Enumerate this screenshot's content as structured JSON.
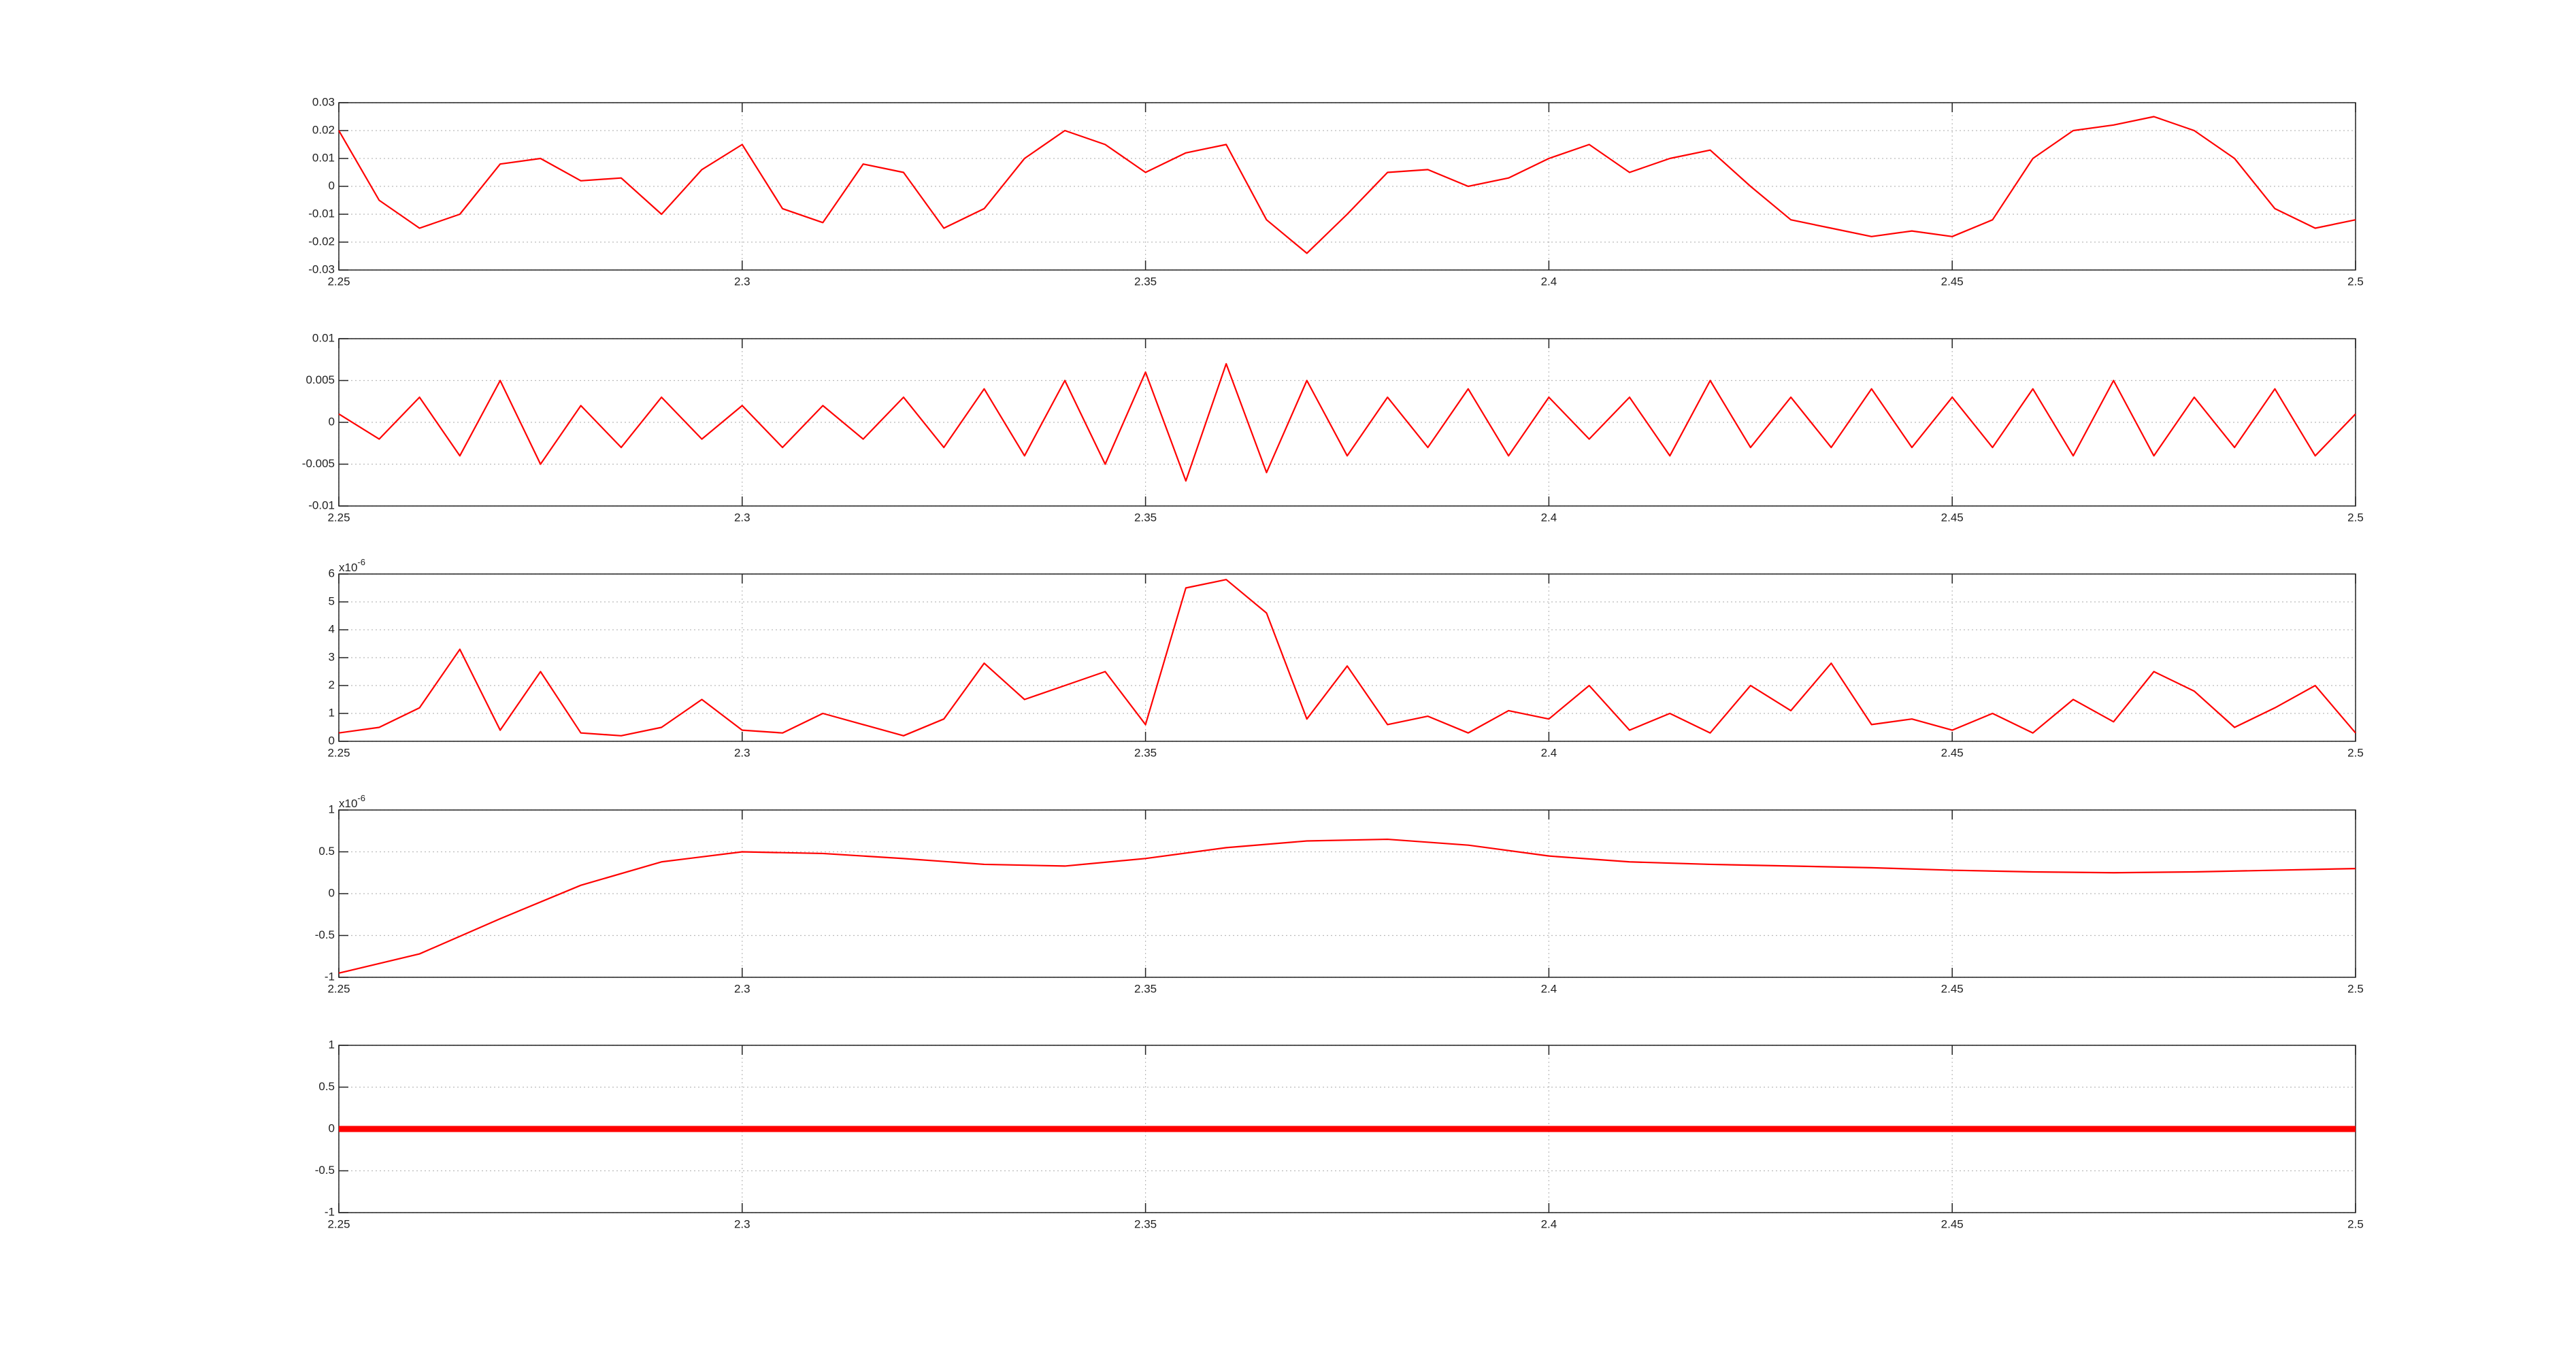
{
  "chart_data": [
    {
      "type": "line",
      "x": [
        2.25,
        2.255,
        2.26,
        2.265,
        2.27,
        2.275,
        2.28,
        2.285,
        2.29,
        2.295,
        2.3,
        2.305,
        2.31,
        2.315,
        2.32,
        2.325,
        2.33,
        2.335,
        2.34,
        2.345,
        2.35,
        2.355,
        2.36,
        2.365,
        2.37,
        2.375,
        2.38,
        2.385,
        2.39,
        2.395,
        2.4,
        2.405,
        2.41,
        2.415,
        2.42,
        2.425,
        2.43,
        2.435,
        2.44,
        2.445,
        2.45,
        2.455,
        2.46,
        2.465,
        2.47,
        2.475,
        2.48,
        2.485,
        2.49,
        2.495,
        2.5
      ],
      "series": [
        {
          "color": "#ff0000",
          "values": [
            0.02,
            -0.005,
            -0.015,
            -0.01,
            0.008,
            0.01,
            0.002,
            0.003,
            -0.01,
            0.006,
            0.015,
            -0.008,
            -0.013,
            0.008,
            0.005,
            -0.015,
            -0.008,
            0.01,
            0.02,
            0.015,
            0.005,
            0.012,
            0.015,
            -0.012,
            -0.024,
            -0.01,
            0.005,
            0.006,
            0,
            0.003,
            0.01,
            0.015,
            0.005,
            0.01,
            0.013,
            0,
            -0.012,
            -0.015,
            -0.018,
            -0.016,
            -0.018,
            -0.012,
            0.01,
            0.02,
            0.022,
            0.025,
            0.02,
            0.01,
            -0.008,
            -0.015,
            -0.012
          ]
        }
      ],
      "xlim": [
        2.25,
        2.5
      ],
      "xticks": [
        2.25,
        2.3,
        2.35,
        2.4,
        2.45,
        2.5
      ],
      "ylim": [
        -0.03,
        0.03
      ],
      "yticks": [
        -0.03,
        -0.02,
        -0.01,
        0,
        0.01,
        0.02,
        0.03
      ],
      "grid": true
    },
    {
      "type": "line",
      "x": [
        2.25,
        2.255,
        2.26,
        2.265,
        2.27,
        2.275,
        2.28,
        2.285,
        2.29,
        2.295,
        2.3,
        2.305,
        2.31,
        2.315,
        2.32,
        2.325,
        2.33,
        2.335,
        2.34,
        2.345,
        2.35,
        2.355,
        2.36,
        2.365,
        2.37,
        2.375,
        2.38,
        2.385,
        2.39,
        2.395,
        2.4,
        2.405,
        2.41,
        2.415,
        2.42,
        2.425,
        2.43,
        2.435,
        2.44,
        2.445,
        2.45,
        2.455,
        2.46,
        2.465,
        2.47,
        2.475,
        2.48,
        2.485,
        2.49,
        2.495,
        2.5
      ],
      "series": [
        {
          "color": "#ff0000",
          "values": [
            0.001,
            -0.002,
            0.003,
            -0.004,
            0.005,
            -0.005,
            0.002,
            -0.003,
            0.003,
            -0.002,
            0.002,
            -0.003,
            0.002,
            -0.002,
            0.003,
            -0.003,
            0.004,
            -0.004,
            0.005,
            -0.005,
            0.006,
            -0.007,
            0.007,
            -0.006,
            0.005,
            -0.004,
            0.003,
            -0.003,
            0.004,
            -0.004,
            0.003,
            -0.002,
            0.003,
            -0.004,
            0.005,
            -0.003,
            0.003,
            -0.003,
            0.004,
            -0.003,
            0.003,
            -0.003,
            0.004,
            -0.004,
            0.005,
            -0.004,
            0.003,
            -0.003,
            0.004,
            -0.004,
            0.001
          ]
        }
      ],
      "xlim": [
        2.25,
        2.5
      ],
      "xticks": [
        2.25,
        2.3,
        2.35,
        2.4,
        2.45,
        2.5
      ],
      "ylim": [
        -0.01,
        0.01
      ],
      "yticks": [
        -0.01,
        -0.005,
        0,
        0.005,
        0.01
      ],
      "grid": true
    },
    {
      "type": "line",
      "x": [
        2.25,
        2.255,
        2.26,
        2.265,
        2.27,
        2.275,
        2.28,
        2.285,
        2.29,
        2.295,
        2.3,
        2.305,
        2.31,
        2.315,
        2.32,
        2.325,
        2.33,
        2.335,
        2.34,
        2.345,
        2.35,
        2.355,
        2.36,
        2.365,
        2.37,
        2.375,
        2.38,
        2.385,
        2.39,
        2.395,
        2.4,
        2.405,
        2.41,
        2.415,
        2.42,
        2.425,
        2.43,
        2.435,
        2.44,
        2.445,
        2.45,
        2.455,
        2.46,
        2.465,
        2.47,
        2.475,
        2.48,
        2.485,
        2.49,
        2.495,
        2.5
      ],
      "series": [
        {
          "color": "#ff0000",
          "values": [
            0.3,
            0.5,
            1.2,
            3.3,
            0.4,
            2.5,
            0.3,
            0.2,
            0.5,
            1.5,
            0.4,
            0.3,
            1.0,
            0.6,
            0.2,
            0.8,
            2.8,
            1.5,
            2.0,
            2.5,
            0.6,
            5.5,
            5.8,
            4.6,
            0.8,
            2.7,
            0.6,
            0.9,
            0.3,
            1.1,
            0.8,
            2.0,
            0.4,
            1.0,
            0.3,
            2.0,
            1.1,
            2.8,
            0.6,
            0.8,
            0.4,
            1.0,
            0.3,
            1.5,
            0.7,
            2.5,
            1.8,
            0.5,
            1.2,
            2.0,
            0.3
          ]
        }
      ],
      "xlim": [
        2.25,
        2.5
      ],
      "xticks": [
        2.25,
        2.3,
        2.35,
        2.4,
        2.45,
        2.5
      ],
      "ylim": [
        0,
        6
      ],
      "yticks": [
        0,
        1,
        2,
        3,
        4,
        5,
        6
      ],
      "grid": true,
      "y_scale_label": "x10",
      "y_scale_exponent": "-6"
    },
    {
      "type": "line",
      "x": [
        2.25,
        2.26,
        2.27,
        2.28,
        2.29,
        2.3,
        2.31,
        2.32,
        2.33,
        2.34,
        2.35,
        2.36,
        2.37,
        2.38,
        2.39,
        2.4,
        2.41,
        2.42,
        2.43,
        2.44,
        2.45,
        2.46,
        2.47,
        2.48,
        2.49,
        2.5
      ],
      "series": [
        {
          "color": "#ff0000",
          "values": [
            -0.95,
            -0.72,
            -0.3,
            0.1,
            0.38,
            0.5,
            0.48,
            0.42,
            0.35,
            0.33,
            0.42,
            0.55,
            0.63,
            0.65,
            0.58,
            0.45,
            0.38,
            0.35,
            0.33,
            0.31,
            0.28,
            0.26,
            0.25,
            0.26,
            0.28,
            0.3
          ]
        }
      ],
      "xlim": [
        2.25,
        2.5
      ],
      "xticks": [
        2.25,
        2.3,
        2.35,
        2.4,
        2.45,
        2.5
      ],
      "ylim": [
        -1,
        1
      ],
      "yticks": [
        -1,
        -0.5,
        0,
        0.5,
        1
      ],
      "grid": true,
      "y_scale_label": "x10",
      "y_scale_exponent": "-6"
    },
    {
      "type": "line",
      "x": [
        2.25,
        2.5
      ],
      "series": [
        {
          "color": "#ff0000",
          "values": [
            0,
            0
          ]
        }
      ],
      "xlim": [
        2.25,
        2.5
      ],
      "xticks": [
        2.25,
        2.3,
        2.35,
        2.4,
        2.45,
        2.5
      ],
      "ylim": [
        -1,
        1
      ],
      "yticks": [
        -1,
        -0.5,
        0,
        0.5,
        1
      ],
      "grid": true
    }
  ]
}
